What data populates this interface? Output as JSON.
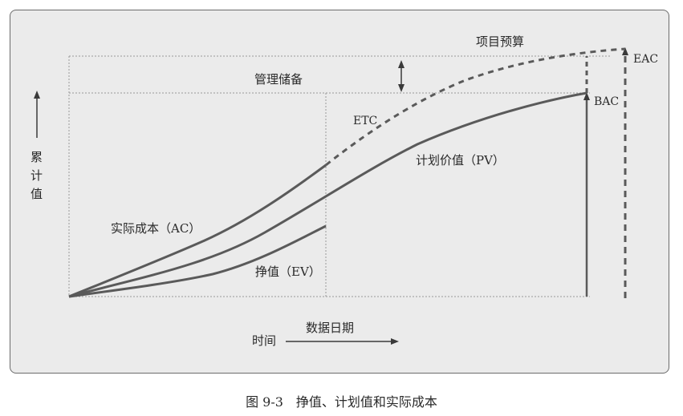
{
  "labels": {
    "project_budget": "项目预算",
    "management_reserve": "管理储备",
    "eac": "EAC",
    "bac": "BAC",
    "etc": "ETC",
    "pv": "计划价值（PV）",
    "ac": "实际成本（AC）",
    "ev": "挣值（EV）",
    "y_axis": [
      "累",
      "计",
      "值"
    ],
    "data_date": "数据日期",
    "time": "时间"
  },
  "caption": "图 9-3　挣值、计划值和实际成本",
  "colors": {
    "background": "#ebebeb",
    "curve": "#5a5a5a",
    "grid": "#999999",
    "text": "#2a2a2a"
  }
}
